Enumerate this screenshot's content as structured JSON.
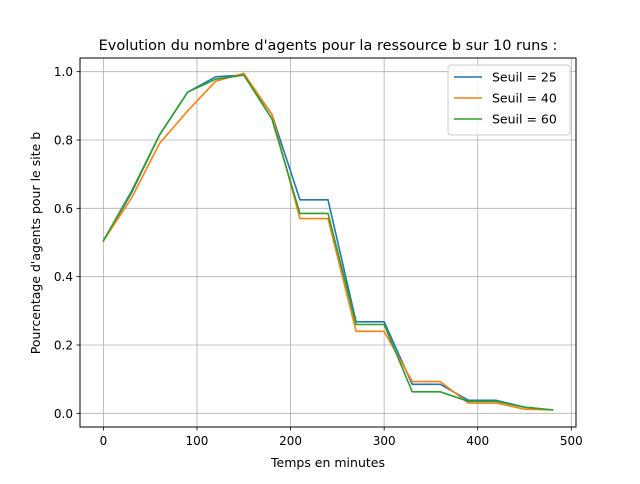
{
  "chart_data": {
    "type": "line",
    "title": "Evolution du nombre d'agents pour la ressource b sur 10 runs :",
    "xlabel": "Temps en minutes",
    "ylabel": "Pourcentage d'agents pour le site b",
    "xlim": [
      -25,
      505
    ],
    "ylim": [
      -0.04,
      1.04
    ],
    "xticks": [
      0,
      100,
      200,
      300,
      400,
      500
    ],
    "yticks": [
      0.0,
      0.2,
      0.4,
      0.6,
      0.8,
      1.0
    ],
    "xtick_labels": [
      "0",
      "100",
      "200",
      "300",
      "400",
      "500"
    ],
    "ytick_labels": [
      "0.0",
      "0.2",
      "0.4",
      "0.6",
      "0.8",
      "1.0"
    ],
    "grid": true,
    "legend_position": "top-right",
    "x": [
      0,
      30,
      60,
      90,
      120,
      150,
      180,
      210,
      240,
      270,
      300,
      330,
      360,
      390,
      420,
      450,
      480
    ],
    "series": [
      {
        "name": "Seuil = 25",
        "color": "#1f77b4",
        "values": [
          0.505,
          0.645,
          0.815,
          0.94,
          0.985,
          0.99,
          0.875,
          0.625,
          0.625,
          0.268,
          0.268,
          0.085,
          0.085,
          0.038,
          0.038,
          0.018,
          0.01
        ]
      },
      {
        "name": "Seuil = 40",
        "color": "#ff7f0e",
        "values": [
          0.505,
          0.63,
          0.79,
          0.885,
          0.972,
          0.995,
          0.875,
          0.57,
          0.57,
          0.24,
          0.24,
          0.093,
          0.093,
          0.03,
          0.03,
          0.012,
          0.01
        ]
      },
      {
        "name": "Seuil = 60",
        "color": "#2ca02c",
        "values": [
          0.505,
          0.65,
          0.815,
          0.94,
          0.978,
          0.99,
          0.862,
          0.585,
          0.585,
          0.26,
          0.26,
          0.063,
          0.063,
          0.035,
          0.035,
          0.018,
          0.01
        ]
      }
    ]
  }
}
